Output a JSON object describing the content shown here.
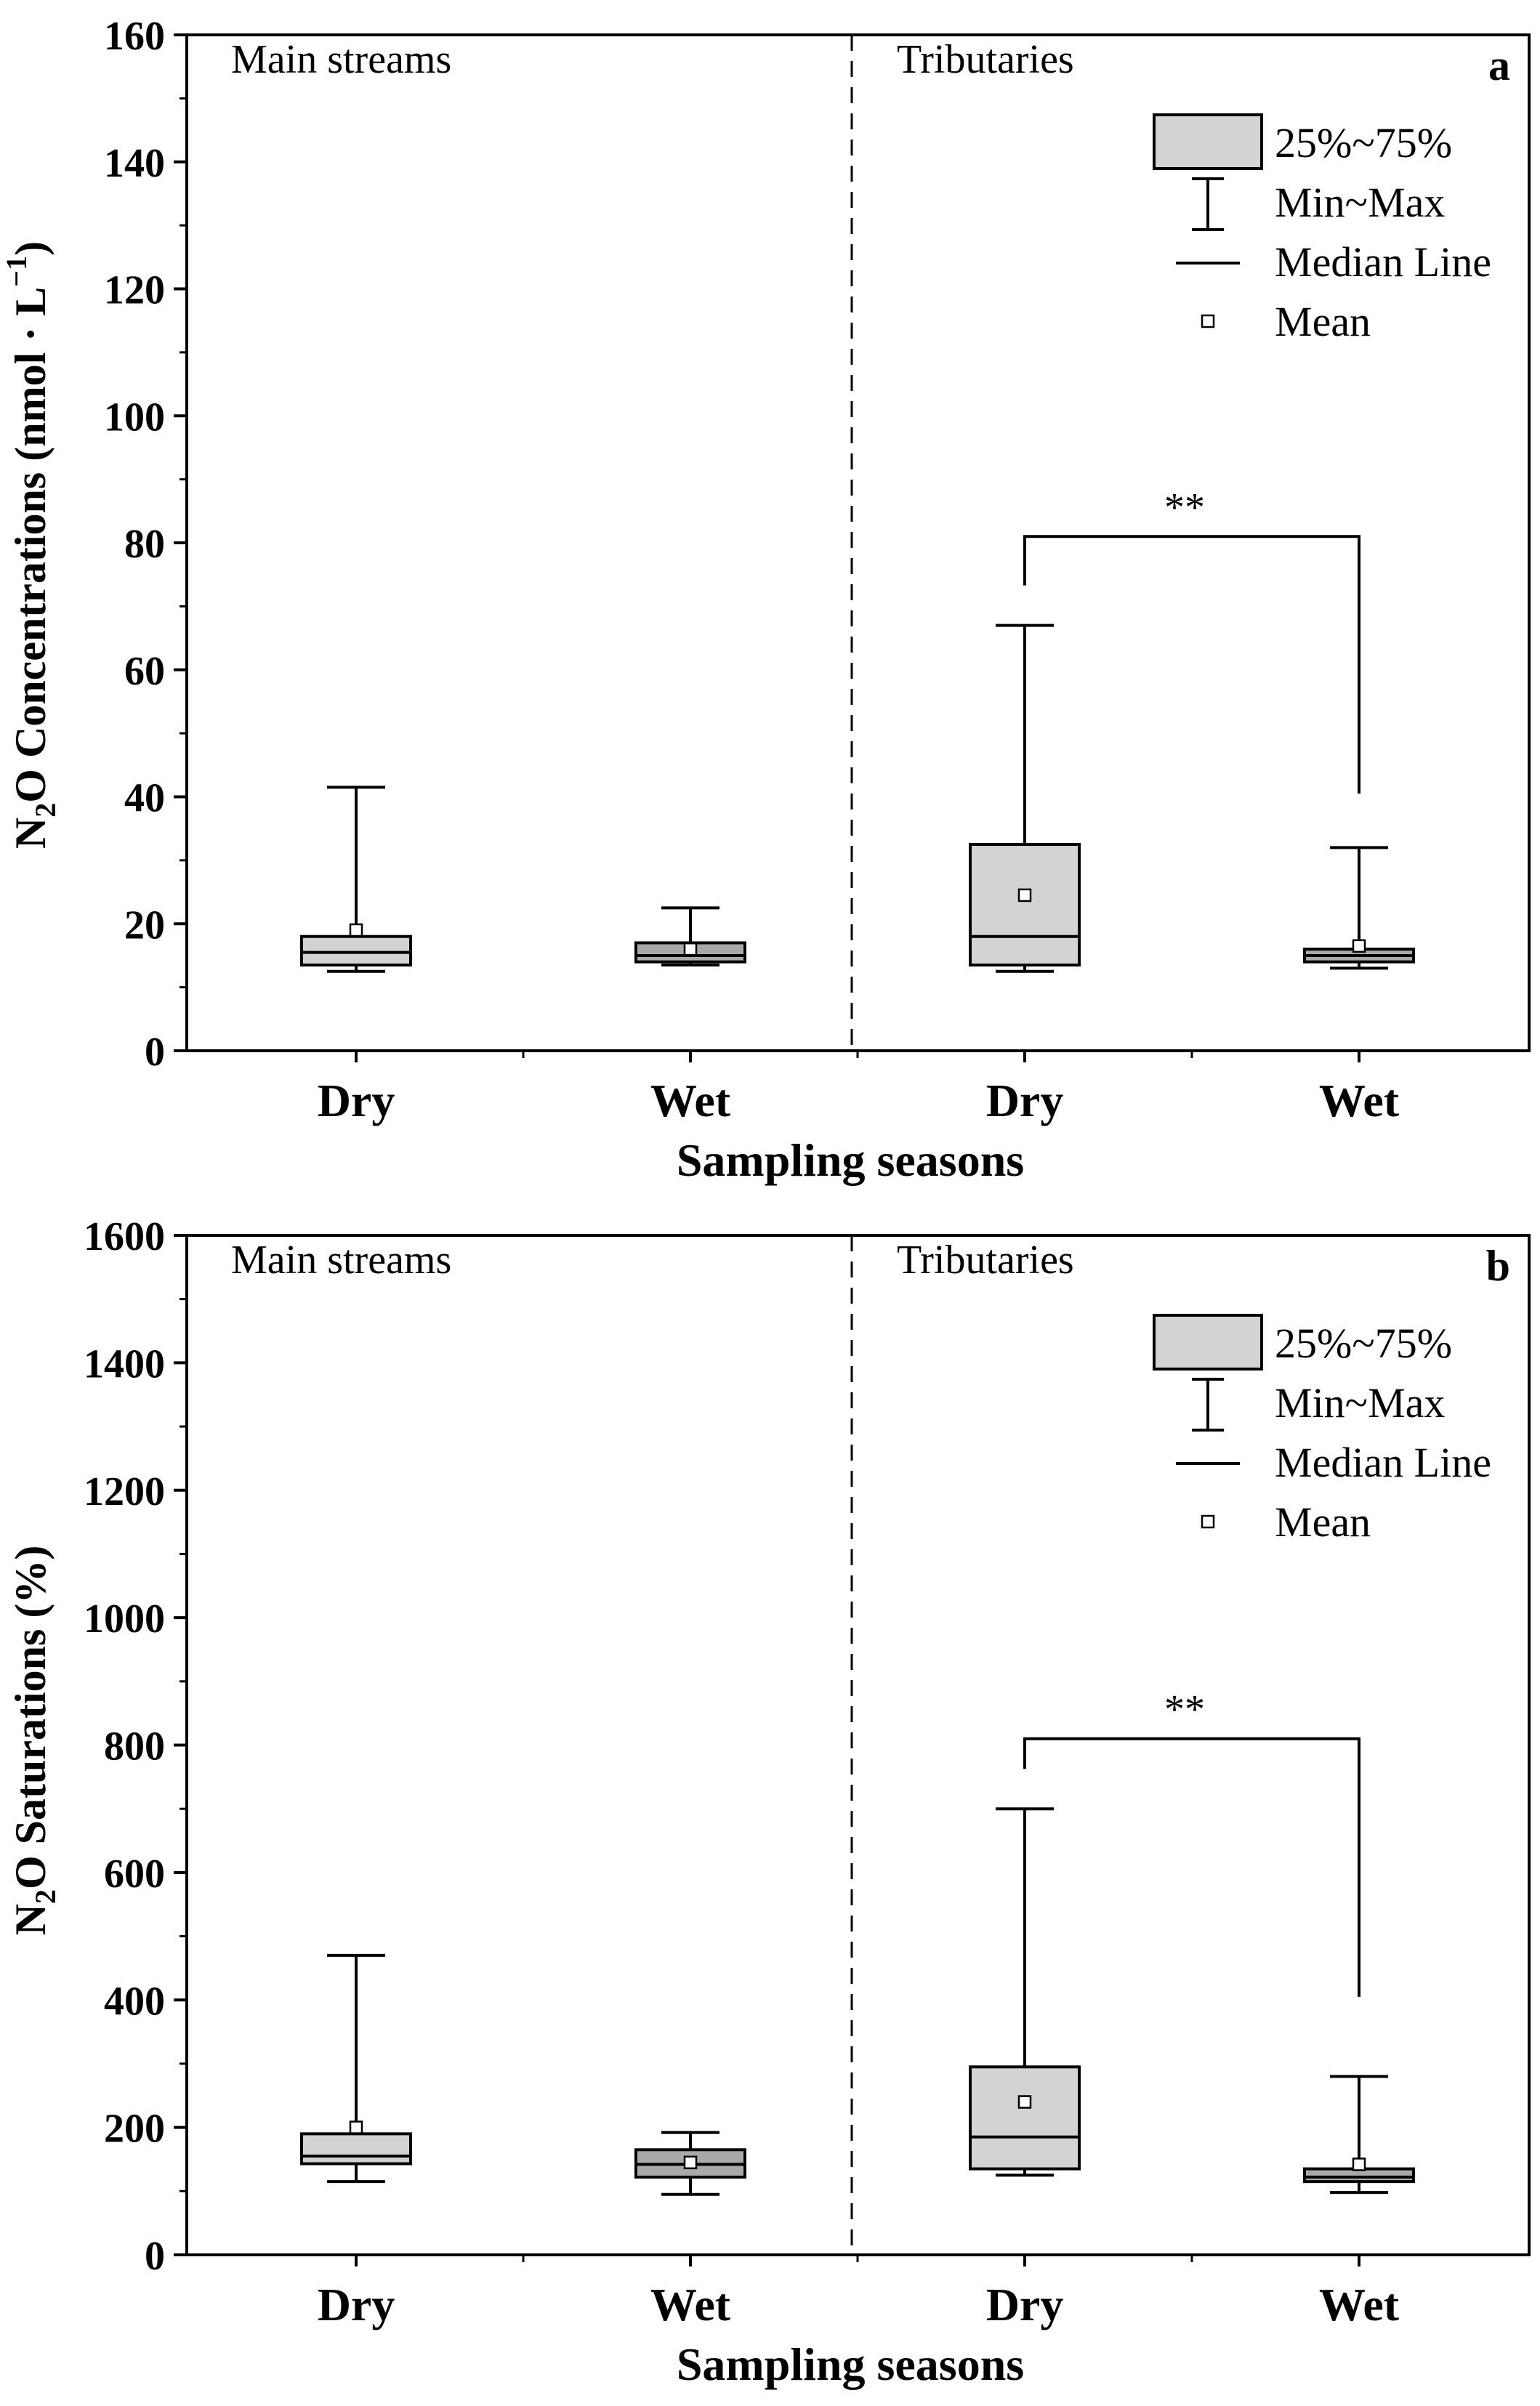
{
  "chart_data": [
    {
      "type": "box",
      "panel_letter": "a",
      "ylabel": {
        "main": "N",
        "sub": "2",
        "rest": "O Concentrations (nmol · L",
        "sup": "−1",
        "end": ")"
      },
      "xlabel": "Sampling seasons",
      "ylim": [
        0,
        160
      ],
      "yticks": [
        0,
        20,
        40,
        60,
        80,
        100,
        120,
        140,
        160
      ],
      "grid": false,
      "regions": [
        "Main streams",
        "Tributaries"
      ],
      "categories": [
        "Dry",
        "Wet",
        "Dry",
        "Wet"
      ],
      "boxes": [
        {
          "region": "Main streams",
          "season": "Dry",
          "min": 12.5,
          "q1": 13.5,
          "median": 15.5,
          "q3": 18,
          "max": 41.5,
          "mean": 19,
          "fill": "#d3d3d3"
        },
        {
          "region": "Main streams",
          "season": "Wet",
          "min": 13.5,
          "q1": 14,
          "median": 15,
          "q3": 17,
          "max": 22.5,
          "mean": 16,
          "fill": "#a9a9a9"
        },
        {
          "region": "Tributaries",
          "season": "Dry",
          "min": 12.5,
          "q1": 13.5,
          "median": 18,
          "q3": 32.5,
          "max": 67,
          "mean": 24.5,
          "fill": "#d3d3d3"
        },
        {
          "region": "Tributaries",
          "season": "Wet",
          "min": 13,
          "q1": 14,
          "median": 15,
          "q3": 16,
          "max": 32,
          "mean": 16.5,
          "fill": "#a9a9a9"
        }
      ],
      "significance": {
        "label": "**",
        "between": [
          "Tributaries Dry",
          "Tributaries Wet"
        ],
        "y": 81
      },
      "legend": {
        "position": "top-right",
        "items": [
          "25%~75%",
          "Min~Max",
          "Median Line",
          "Mean"
        ]
      }
    },
    {
      "type": "box",
      "panel_letter": "b",
      "ylabel": {
        "main": "N",
        "sub": "2",
        "rest": "O Saturations (%)",
        "sup": "",
        "end": ""
      },
      "xlabel": "Sampling seasons",
      "ylim": [
        0,
        1600
      ],
      "yticks": [
        0,
        200,
        400,
        600,
        800,
        1000,
        1200,
        1400,
        1600
      ],
      "grid": false,
      "regions": [
        "Main streams",
        "Tributaries"
      ],
      "categories": [
        "Dry",
        "Wet",
        "Dry",
        "Wet"
      ],
      "boxes": [
        {
          "region": "Main streams",
          "season": "Dry",
          "min": 115,
          "q1": 143,
          "median": 155,
          "q3": 190,
          "max": 470,
          "mean": 200,
          "fill": "#d3d3d3"
        },
        {
          "region": "Main streams",
          "season": "Wet",
          "min": 95,
          "q1": 122,
          "median": 142,
          "q3": 165,
          "max": 192,
          "mean": 145,
          "fill": "#a9a9a9"
        },
        {
          "region": "Tributaries",
          "season": "Dry",
          "min": 125,
          "q1": 135,
          "median": 185,
          "q3": 295,
          "max": 700,
          "mean": 240,
          "fill": "#d3d3d3"
        },
        {
          "region": "Tributaries",
          "season": "Wet",
          "min": 98,
          "q1": 115,
          "median": 122,
          "q3": 135,
          "max": 280,
          "mean": 142,
          "fill": "#a9a9a9"
        }
      ],
      "significance": {
        "label": "**",
        "between": [
          "Tributaries Dry",
          "Tributaries Wet"
        ],
        "y": 810
      },
      "legend": {
        "position": "top-right",
        "items": [
          "25%~75%",
          "Min~Max",
          "Median Line",
          "Mean"
        ]
      }
    }
  ]
}
